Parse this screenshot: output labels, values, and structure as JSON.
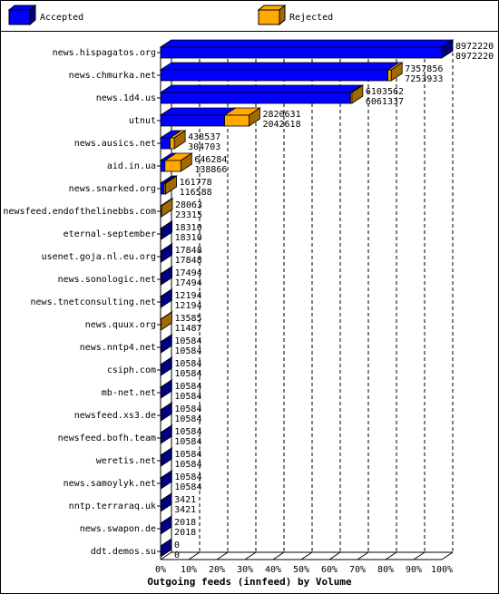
{
  "chart_data": {
    "type": "bar3d",
    "orientation": "horizontal",
    "stacked": true,
    "x_label": "Outgoing feeds (innfeed) by Volume",
    "categories": [
      "news.hispagatos.org",
      "news.chmurka.net",
      "news.1d4.us",
      "utnut",
      "news.ausics.net",
      "aid.in.ua",
      "news.snarked.org",
      "newsfeed.endofthelinebbs.com",
      "eternal-september",
      "usenet.goja.nl.eu.org",
      "news.sonologic.net",
      "news.tnetconsulting.net",
      "news.quux.org",
      "news.nntp4.net",
      "csiph.com",
      "mb-net.net",
      "newsfeed.xs3.de",
      "newsfeed.bofh.team",
      "weretis.net",
      "news.samoylyk.net",
      "nntp.terraraq.uk",
      "news.swapon.de",
      "ddt.demos.su"
    ],
    "totals": [
      8972220,
      7357856,
      6103562,
      2820631,
      438537,
      646284,
      161778,
      28063,
      18310,
      17848,
      17494,
      12194,
      13585,
      10584,
      10584,
      10584,
      10584,
      10584,
      10584,
      10584,
      3421,
      2018,
      0
    ],
    "series": [
      {
        "name": "Accepted",
        "color": "#0000ff",
        "side": "#000080",
        "values": [
          8972220,
          7253933,
          6061337,
          2042618,
          304703,
          138866,
          116588,
          23315,
          18310,
          17848,
          17494,
          12194,
          11487,
          10584,
          10584,
          10584,
          10584,
          10584,
          10584,
          10584,
          3421,
          2018,
          0
        ]
      },
      {
        "name": "Rejected",
        "color": "#ffaa00",
        "side": "#a06a00",
        "values": [
          0,
          103923,
          42225,
          778013,
          133834,
          507418,
          45190,
          4748,
          0,
          0,
          0,
          0,
          2098,
          0,
          0,
          0,
          0,
          0,
          0,
          0,
          0,
          0,
          0
        ]
      }
    ],
    "xlim": [
      0,
      8972220
    ],
    "xticks": [
      {
        "value": 0,
        "label": "0%"
      },
      {
        "value": 897222,
        "label": "10%"
      },
      {
        "value": 1794444,
        "label": "20%"
      },
      {
        "value": 2691666,
        "label": "30%"
      },
      {
        "value": 3588888,
        "label": "40%"
      },
      {
        "value": 4486110,
        "label": "50%"
      },
      {
        "value": 5383332,
        "label": "60%"
      },
      {
        "value": 6280554,
        "label": "70%"
      },
      {
        "value": 7177776,
        "label": "80%"
      },
      {
        "value": 8074998,
        "label": "90%"
      },
      {
        "value": 8972220,
        "label": "100%"
      }
    ],
    "grid": true
  }
}
